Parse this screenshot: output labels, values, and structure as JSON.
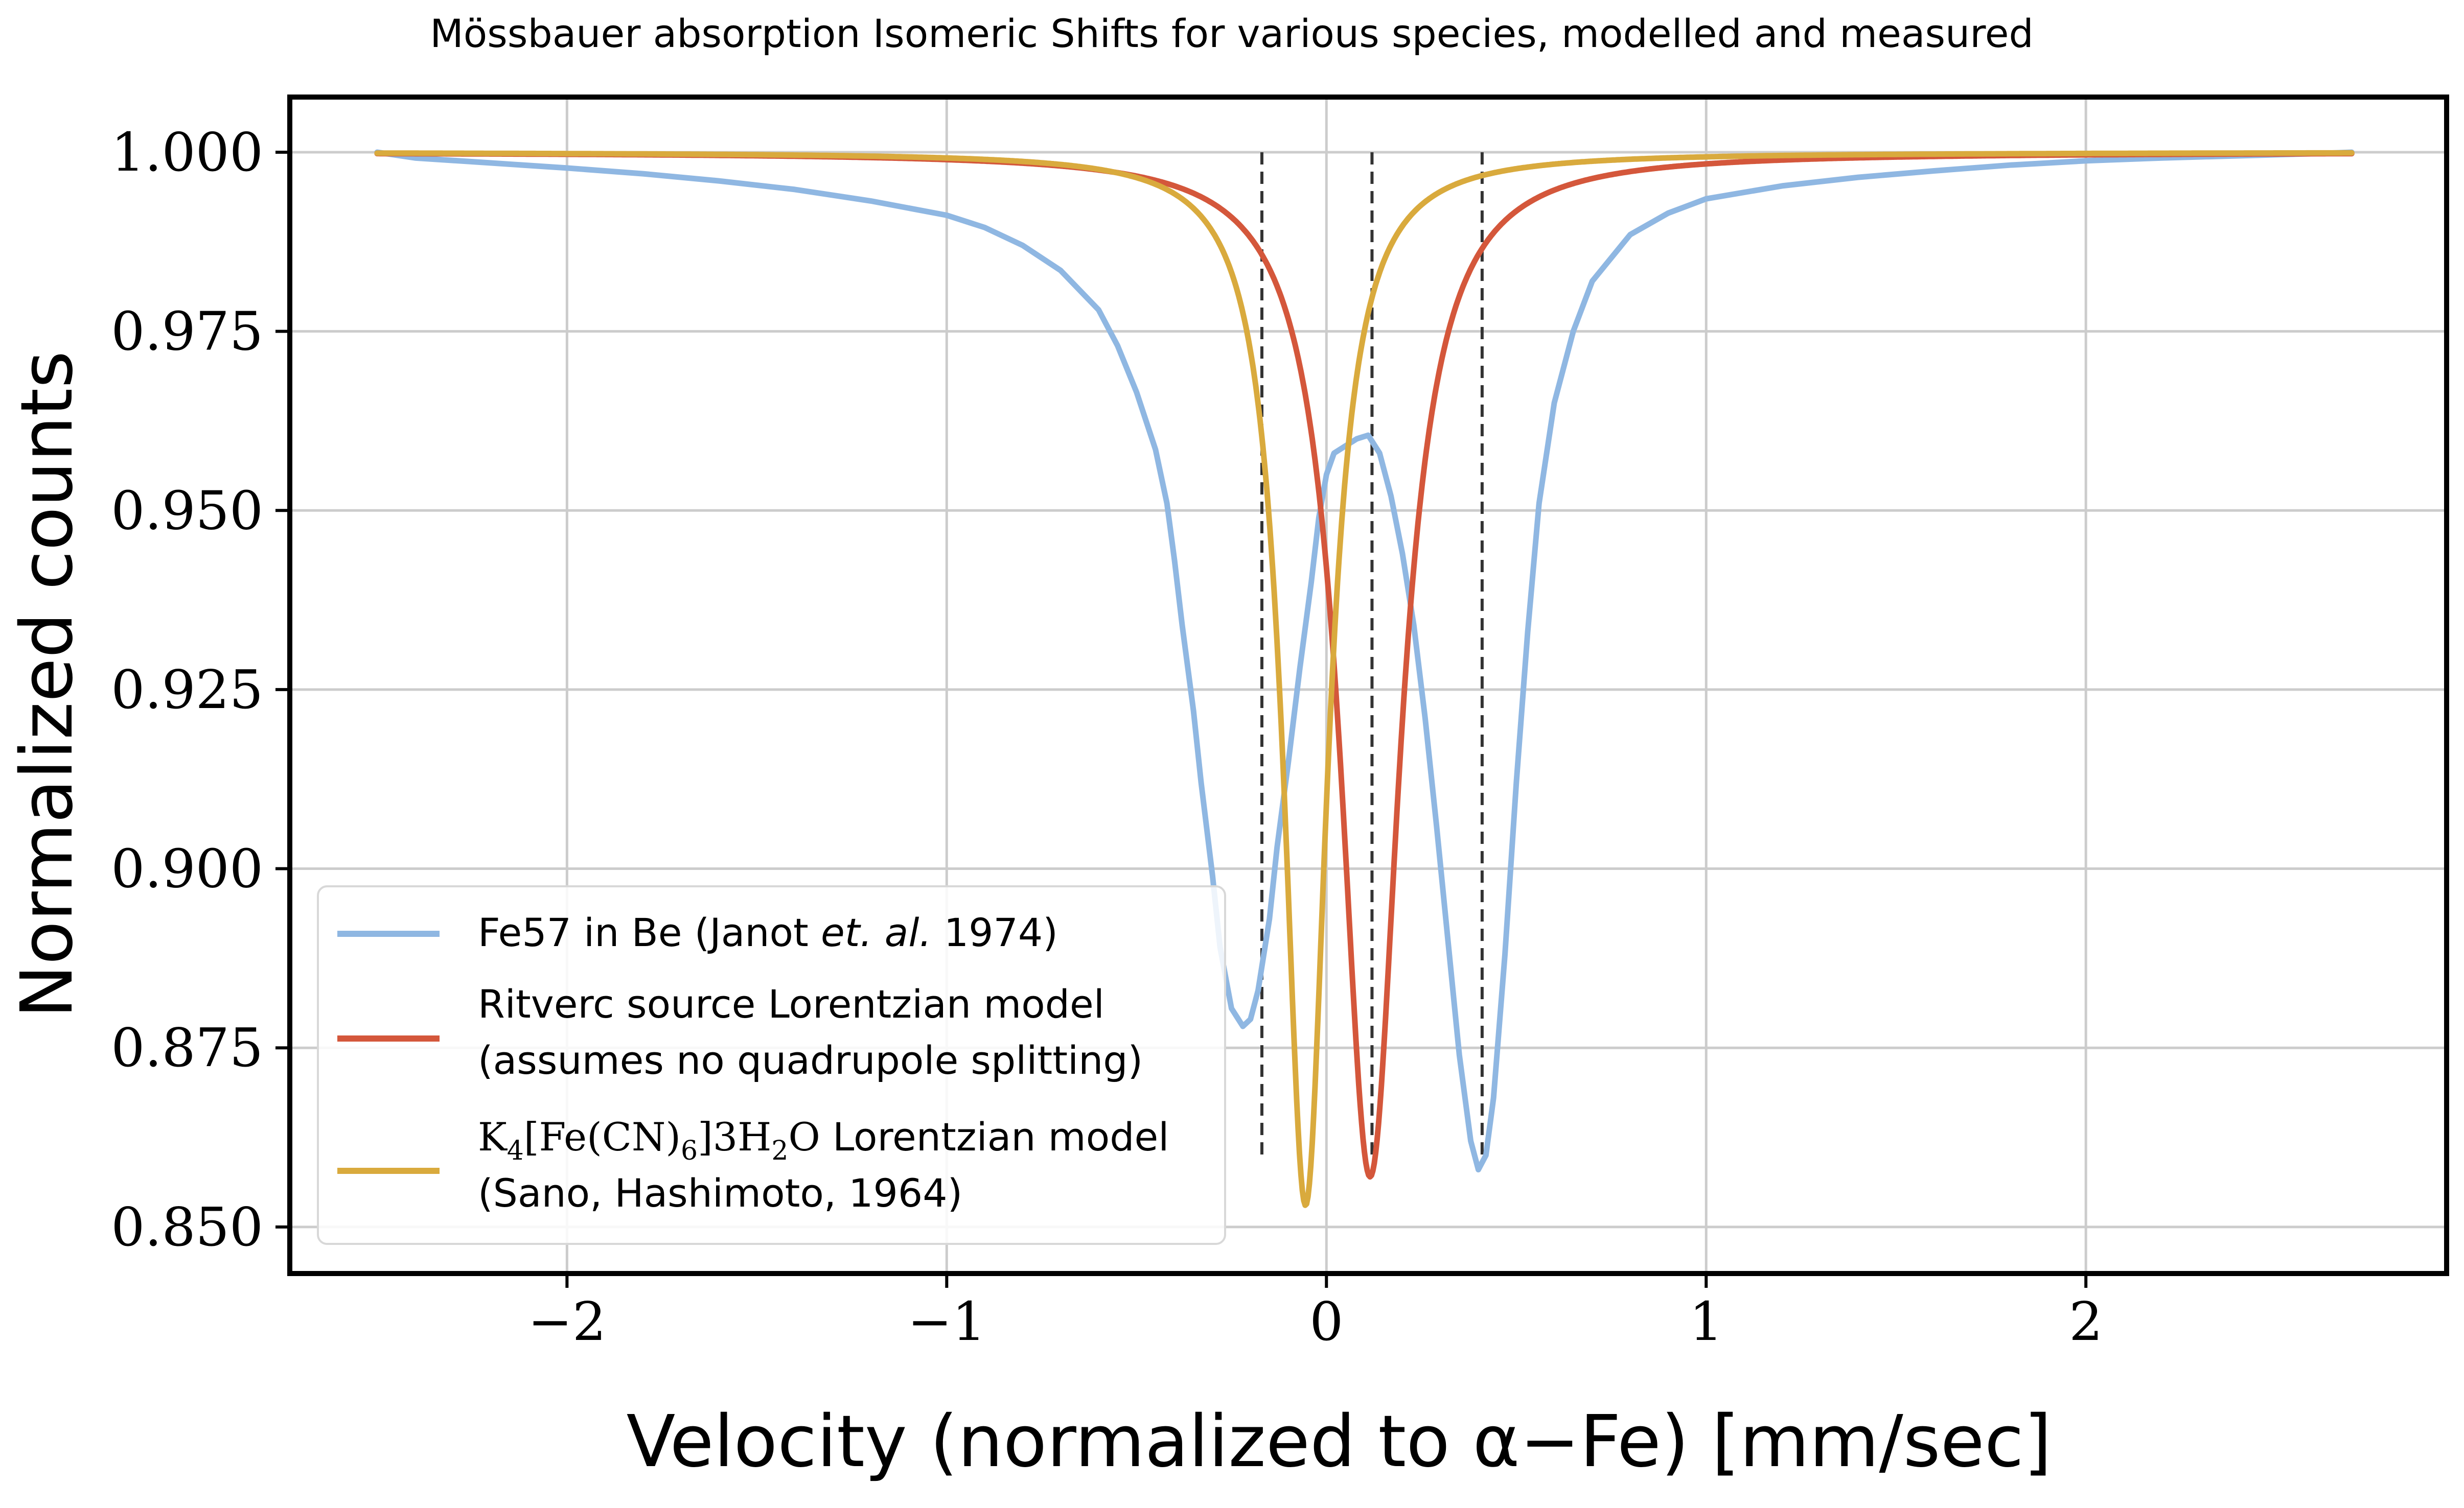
{
  "chart_data": {
    "type": "line",
    "title": "Mössbauer absorption Isomeric Shifts for various species, modelled and measured",
    "xlabel": "Velocity (normalized to α−Fe) [mm/sec]",
    "ylabel": "Normalized counts",
    "xlim": [
      -2.73,
      2.95
    ],
    "ylim": [
      0.8435,
      1.0077
    ],
    "xticks": [
      -2,
      -1,
      0,
      1,
      2
    ],
    "xtick_labels": [
      "−2",
      "−1",
      "0",
      "1",
      "2"
    ],
    "yticks": [
      0.85,
      0.875,
      0.9,
      0.925,
      0.95,
      0.975,
      1.0
    ],
    "ytick_labels": [
      "0.850",
      "0.875",
      "0.900",
      "0.925",
      "0.950",
      "0.975",
      "1.000"
    ],
    "grid": true,
    "legend_position": "lower-left",
    "vlines": {
      "style": "dashed",
      "color": "#333333",
      "x": [
        -0.17,
        0.12,
        0.41
      ],
      "ymin": 0.86,
      "ymax": 1.0
    },
    "series": [
      {
        "name": "Fe57 in Be (Janot et. al. 1974)",
        "color": "#8fb7e2",
        "x": [
          -2.5,
          -2.4,
          -2.2,
          -2.0,
          -1.8,
          -1.6,
          -1.4,
          -1.2,
          -1.0,
          -0.9,
          -0.8,
          -0.7,
          -0.6,
          -0.55,
          -0.5,
          -0.45,
          -0.42,
          -0.4,
          -0.38,
          -0.35,
          -0.33,
          -0.3,
          -0.28,
          -0.25,
          -0.22,
          -0.2,
          -0.18,
          -0.15,
          -0.13,
          -0.1,
          -0.07,
          -0.04,
          -0.02,
          0.0,
          0.02,
          0.05,
          0.08,
          0.11,
          0.14,
          0.17,
          0.2,
          0.23,
          0.26,
          0.29,
          0.32,
          0.35,
          0.38,
          0.4,
          0.42,
          0.44,
          0.47,
          0.5,
          0.53,
          0.56,
          0.6,
          0.65,
          0.7,
          0.8,
          0.9,
          1.0,
          1.2,
          1.4,
          1.6,
          1.8,
          2.0,
          2.2,
          2.4,
          2.6,
          2.7
        ],
        "y": [
          1.0,
          0.9992,
          0.9985,
          0.9978,
          0.997,
          0.996,
          0.9948,
          0.9932,
          0.9912,
          0.9895,
          0.987,
          0.9835,
          0.978,
          0.973,
          0.9665,
          0.9585,
          0.951,
          0.943,
          0.934,
          0.922,
          0.912,
          0.899,
          0.889,
          0.8805,
          0.878,
          0.879,
          0.883,
          0.893,
          0.903,
          0.915,
          0.928,
          0.94,
          0.949,
          0.955,
          0.958,
          0.959,
          0.96,
          0.9605,
          0.958,
          0.952,
          0.944,
          0.934,
          0.921,
          0.906,
          0.89,
          0.874,
          0.862,
          0.858,
          0.86,
          0.868,
          0.888,
          0.912,
          0.933,
          0.951,
          0.965,
          0.975,
          0.982,
          0.9885,
          0.9915,
          0.9935,
          0.9953,
          0.9965,
          0.9974,
          0.9982,
          0.9988,
          0.9992,
          0.9995,
          0.9998,
          1.0
        ]
      },
      {
        "name": "Ritverc source Lorentzian model (assumes no quadrupole splitting)",
        "color": "#d4573b",
        "center": 0.115,
        "depth": 0.143,
        "hwhm": 0.095,
        "x_range": [
          -2.5,
          2.7
        ]
      },
      {
        "name": "K4[Fe(CN)6]3H2O Lorentzian model (Sano, Hashimoto, 1964)",
        "color": "#d9aa3d",
        "center": -0.055,
        "depth": 0.147,
        "hwhm": 0.07,
        "x_range": [
          -2.5,
          2.7
        ]
      }
    ]
  },
  "legend": {
    "entries": [
      {
        "color": "#8fb7e2",
        "text_before": "Fe57 in Be (Janot ",
        "text_italic": "et. al.",
        "text_after": " 1974)"
      },
      {
        "color": "#d4573b",
        "line1": "Ritverc source Lorentzian model",
        "line2": "(assumes no quadrupole splitting)"
      },
      {
        "color": "#d9aa3d",
        "formula_k": "K",
        "formula_sub4": "4",
        "formula_mid": "[Fe(CN)",
        "formula_sub6": "6",
        "formula_end1": "]3H",
        "formula_sub2": "2",
        "formula_end2": "O",
        "line1_rest": " Lorentzian model",
        "line2": "(Sano, Hashimoto, 1964)"
      }
    ]
  }
}
